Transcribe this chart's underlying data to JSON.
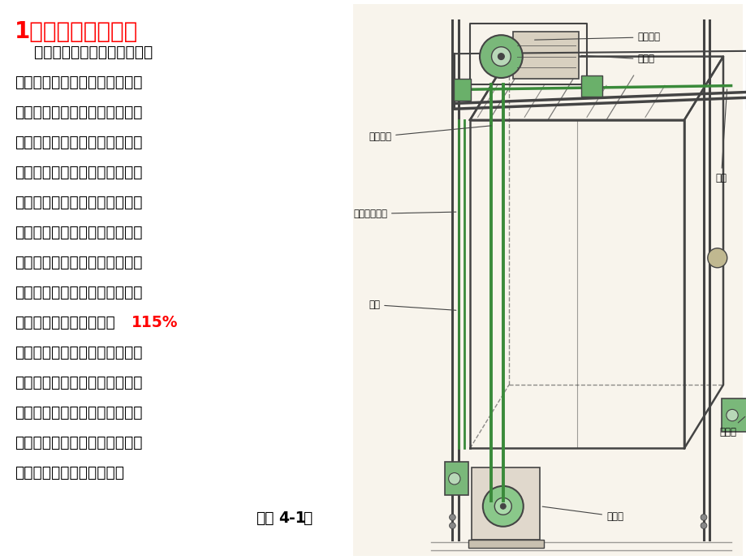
{
  "bg_color": "#ffffff",
  "title_prefix": "1．",
  "title_main": "限速器和安全钳",
  "title_color": "#ff0000",
  "title_fontsize": 20,
  "body_lines": [
    [
      "    限速器和安全钳是电梯最重要",
      false
    ],
    [
      "的安全保护装置，也称之为断绳",
      false
    ],
    [
      "保护和超速保护。安装在电梯机",
      false
    ],
    [
      "房楼板地面上。限速器的钢丝绳",
      false
    ],
    [
      "围绕着绳轮和底坑中的张紧轮形",
      false
    ],
    [
      "成一个闭环，其绳头部与轿厢紧",
      false
    ],
    [
      "固在一起，并通过机械连杆与安",
      false
    ],
    [
      "全钳连起来。限速器能够反映轿",
      false
    ],
    [
      "厢的实际运行速度，当电梯轿厢",
      false
    ],
    [
      "运行速度超过额定速度的115%",
      true
    ],
    [
      "时，限速器动作，触发夹绳装置",
      false
    ],
    [
      "夹紧钢丝绳。当轿厢下降时，钢",
      false
    ],
    [
      "丝绳拉动安全钳动作，使安全钳",
      false
    ],
    [
      "对导轨产生摩擦力，把轿厢迅速",
      false
    ],
    [
      "制停在导轨上，停止运动。",
      false
    ]
  ],
  "highlight_115": "115%",
  "highlight_color": "#ff0000",
  "body_fontsize": 13.5,
  "body_color": "#000000",
  "caption_normal": "图（",
  "caption_bold": "4-1",
  "caption_end": "）",
  "caption_fontsize": 13.5,
  "diagram_bg": "#f8f4ec",
  "green_color": "#3a8a3a",
  "line_color": "#444444",
  "label_fontsize": 8.5,
  "label_color": "#111111"
}
